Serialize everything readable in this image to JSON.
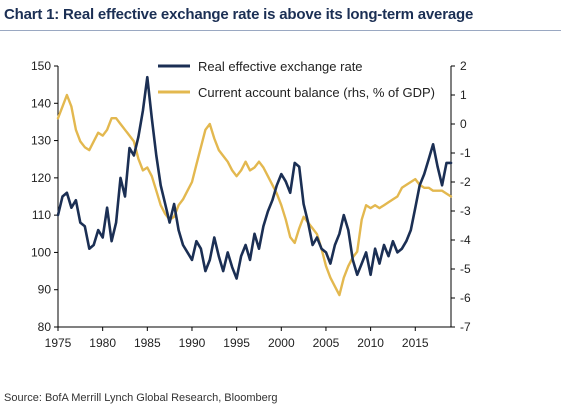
{
  "chart_data": {
    "type": "line",
    "title": "Chart 1: Real effective exchange rate is above its long-term average",
    "source": "Source: BofA Merrill Lynch Global Research, Bloomberg",
    "x_ticks": [
      "1975",
      "1980",
      "1985",
      "1990",
      "1995",
      "2000",
      "2005",
      "2010",
      "2015"
    ],
    "xlim": [
      1975,
      2019
    ],
    "left_axis": {
      "ylim": [
        80,
        150
      ],
      "ticks": [
        "80",
        "90",
        "100",
        "110",
        "120",
        "130",
        "140",
        "150"
      ]
    },
    "right_axis": {
      "ylim": [
        -7,
        2
      ],
      "ticks": [
        "-7",
        "-6",
        "-5",
        "-4",
        "-3",
        "-2",
        "-1",
        "0",
        "1",
        "2"
      ]
    },
    "legend_position": "top-right",
    "grid": false,
    "series": [
      {
        "name": "Real effective exchange rate",
        "axis": "left",
        "color": "#1b2f54",
        "points": [
          [
            1975.0,
            110
          ],
          [
            1975.5,
            115
          ],
          [
            1976.0,
            116
          ],
          [
            1976.5,
            112
          ],
          [
            1977.0,
            114
          ],
          [
            1977.5,
            108
          ],
          [
            1978.0,
            107
          ],
          [
            1978.5,
            101
          ],
          [
            1979.0,
            102
          ],
          [
            1979.5,
            106
          ],
          [
            1980.0,
            104
          ],
          [
            1980.5,
            112
          ],
          [
            1981.0,
            103
          ],
          [
            1981.5,
            108
          ],
          [
            1982.0,
            120
          ],
          [
            1982.5,
            115
          ],
          [
            1983.0,
            128
          ],
          [
            1983.5,
            126
          ],
          [
            1984.0,
            131
          ],
          [
            1984.5,
            138
          ],
          [
            1985.0,
            147
          ],
          [
            1985.5,
            136
          ],
          [
            1986.0,
            126
          ],
          [
            1986.5,
            118
          ],
          [
            1987.0,
            113
          ],
          [
            1987.5,
            108
          ],
          [
            1988.0,
            113
          ],
          [
            1988.5,
            106
          ],
          [
            1989.0,
            102
          ],
          [
            1989.5,
            100
          ],
          [
            1990.0,
            98
          ],
          [
            1990.5,
            103
          ],
          [
            1991.0,
            101
          ],
          [
            1991.5,
            95
          ],
          [
            1992.0,
            98
          ],
          [
            1992.5,
            104
          ],
          [
            1993.0,
            99
          ],
          [
            1993.5,
            95
          ],
          [
            1994.0,
            100
          ],
          [
            1994.5,
            96
          ],
          [
            1995.0,
            93
          ],
          [
            1995.5,
            99
          ],
          [
            1996.0,
            102
          ],
          [
            1996.5,
            98
          ],
          [
            1997.0,
            105
          ],
          [
            1997.5,
            101
          ],
          [
            1998.0,
            107
          ],
          [
            1998.5,
            111
          ],
          [
            1999.0,
            114
          ],
          [
            1999.5,
            118
          ],
          [
            2000.0,
            121
          ],
          [
            2000.5,
            119
          ],
          [
            2001.0,
            116
          ],
          [
            2001.5,
            124
          ],
          [
            2002.0,
            123
          ],
          [
            2002.5,
            113
          ],
          [
            2003.0,
            108
          ],
          [
            2003.5,
            102
          ],
          [
            2004.0,
            104
          ],
          [
            2004.5,
            101
          ],
          [
            2005.0,
            100
          ],
          [
            2005.5,
            97
          ],
          [
            2006.0,
            102
          ],
          [
            2006.5,
            105
          ],
          [
            2007.0,
            110
          ],
          [
            2007.5,
            106
          ],
          [
            2008.0,
            98
          ],
          [
            2008.5,
            94
          ],
          [
            2009.0,
            97
          ],
          [
            2009.5,
            100
          ],
          [
            2010.0,
            94
          ],
          [
            2010.5,
            101
          ],
          [
            2011.0,
            97
          ],
          [
            2011.5,
            102
          ],
          [
            2012.0,
            99
          ],
          [
            2012.5,
            103
          ],
          [
            2013.0,
            100
          ],
          [
            2013.5,
            101
          ],
          [
            2014.0,
            103
          ],
          [
            2014.5,
            106
          ],
          [
            2015.0,
            112
          ],
          [
            2015.5,
            118
          ],
          [
            2016.0,
            121
          ],
          [
            2016.5,
            125
          ],
          [
            2017.0,
            129
          ],
          [
            2017.5,
            123
          ],
          [
            2018.0,
            118
          ],
          [
            2018.5,
            124
          ],
          [
            2019.0,
            124
          ]
        ]
      },
      {
        "name": "Current account balance (rhs, % of GDP)",
        "axis": "right",
        "color": "#e3b84f",
        "points": [
          [
            1975.0,
            0.2
          ],
          [
            1975.5,
            0.6
          ],
          [
            1976.0,
            1.0
          ],
          [
            1976.5,
            0.6
          ],
          [
            1977.0,
            -0.2
          ],
          [
            1977.5,
            -0.6
          ],
          [
            1978.0,
            -0.8
          ],
          [
            1978.5,
            -0.9
          ],
          [
            1979.0,
            -0.6
          ],
          [
            1979.5,
            -0.3
          ],
          [
            1980.0,
            -0.4
          ],
          [
            1980.5,
            -0.2
          ],
          [
            1981.0,
            0.2
          ],
          [
            1981.5,
            0.2
          ],
          [
            1982.0,
            0.0
          ],
          [
            1982.5,
            -0.2
          ],
          [
            1983.0,
            -0.4
          ],
          [
            1983.5,
            -0.6
          ],
          [
            1984.0,
            -1.2
          ],
          [
            1984.5,
            -1.6
          ],
          [
            1985.0,
            -1.5
          ],
          [
            1985.5,
            -1.8
          ],
          [
            1986.0,
            -2.3
          ],
          [
            1986.5,
            -2.8
          ],
          [
            1987.0,
            -3.1
          ],
          [
            1987.5,
            -3.3
          ],
          [
            1988.0,
            -3.2
          ],
          [
            1988.5,
            -2.8
          ],
          [
            1989.0,
            -2.6
          ],
          [
            1989.5,
            -2.3
          ],
          [
            1990.0,
            -2.0
          ],
          [
            1990.5,
            -1.4
          ],
          [
            1991.0,
            -0.8
          ],
          [
            1991.5,
            -0.2
          ],
          [
            1992.0,
            0.0
          ],
          [
            1992.5,
            -0.5
          ],
          [
            1993.0,
            -0.9
          ],
          [
            1993.5,
            -1.1
          ],
          [
            1994.0,
            -1.3
          ],
          [
            1994.5,
            -1.6
          ],
          [
            1995.0,
            -1.8
          ],
          [
            1995.5,
            -1.6
          ],
          [
            1996.0,
            -1.3
          ],
          [
            1996.5,
            -1.6
          ],
          [
            1997.0,
            -1.5
          ],
          [
            1997.5,
            -1.3
          ],
          [
            1998.0,
            -1.5
          ],
          [
            1998.5,
            -1.8
          ],
          [
            1999.0,
            -2.1
          ],
          [
            1999.5,
            -2.4
          ],
          [
            2000.0,
            -2.8
          ],
          [
            2000.5,
            -3.3
          ],
          [
            2001.0,
            -3.9
          ],
          [
            2001.5,
            -4.1
          ],
          [
            2002.0,
            -3.6
          ],
          [
            2002.5,
            -3.2
          ],
          [
            2003.0,
            -3.4
          ],
          [
            2003.5,
            -3.6
          ],
          [
            2004.0,
            -3.8
          ],
          [
            2004.5,
            -4.3
          ],
          [
            2005.0,
            -4.9
          ],
          [
            2005.5,
            -5.3
          ],
          [
            2006.0,
            -5.6
          ],
          [
            2006.5,
            -5.9
          ],
          [
            2007.0,
            -5.3
          ],
          [
            2007.5,
            -4.9
          ],
          [
            2008.0,
            -4.6
          ],
          [
            2008.5,
            -4.4
          ],
          [
            2009.0,
            -3.3
          ],
          [
            2009.5,
            -2.8
          ],
          [
            2010.0,
            -2.9
          ],
          [
            2010.5,
            -2.8
          ],
          [
            2011.0,
            -2.9
          ],
          [
            2011.5,
            -2.8
          ],
          [
            2012.0,
            -2.7
          ],
          [
            2012.5,
            -2.6
          ],
          [
            2013.0,
            -2.5
          ],
          [
            2013.5,
            -2.2
          ],
          [
            2014.0,
            -2.1
          ],
          [
            2014.5,
            -2.0
          ],
          [
            2015.0,
            -1.9
          ],
          [
            2015.5,
            -2.1
          ],
          [
            2016.0,
            -2.2
          ],
          [
            2016.5,
            -2.2
          ],
          [
            2017.0,
            -2.3
          ],
          [
            2017.5,
            -2.3
          ],
          [
            2018.0,
            -2.3
          ],
          [
            2018.5,
            -2.4
          ],
          [
            2019.0,
            -2.5
          ]
        ]
      }
    ]
  }
}
